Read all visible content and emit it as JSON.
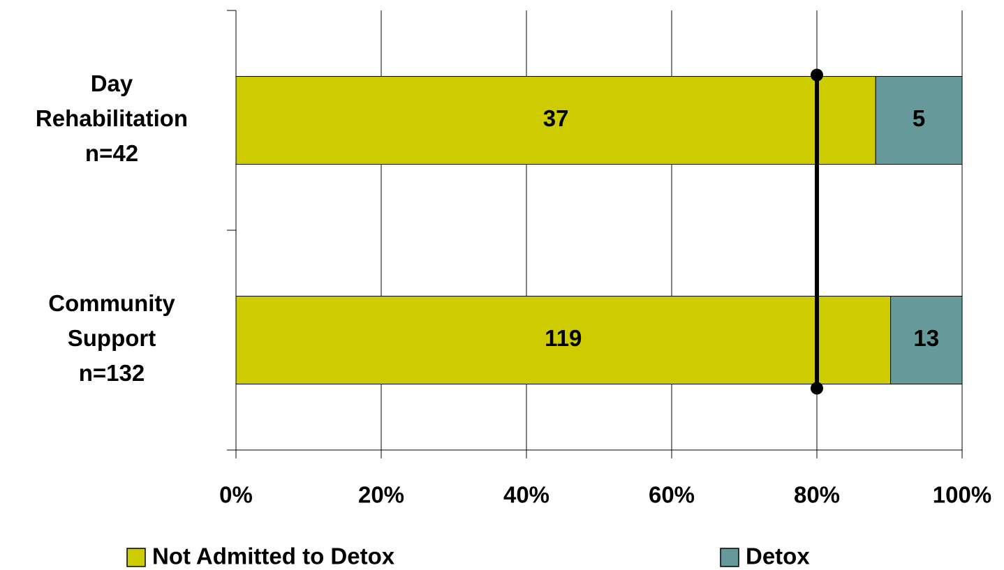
{
  "chart_data": {
    "type": "bar",
    "orientation": "horizontal",
    "stack": "percent",
    "categories": [
      [
        "Day",
        "Rehabilitation",
        "n=42"
      ],
      [
        "Community",
        "Support",
        "n=132"
      ]
    ],
    "series": [
      {
        "name": "Not Admitted to Detox",
        "color": "#cccc00",
        "values": [
          37,
          119
        ]
      },
      {
        "name": "Detox",
        "color": "#669999",
        "values": [
          5,
          13
        ]
      }
    ],
    "xlim": [
      0,
      100
    ],
    "xticks": [
      {
        "value": 0,
        "label": "0%"
      },
      {
        "value": 20,
        "label": "20%"
      },
      {
        "value": 40,
        "label": "40%"
      },
      {
        "value": 60,
        "label": "60%"
      },
      {
        "value": 80,
        "label": "80%"
      },
      {
        "value": 100,
        "label": "100%"
      }
    ],
    "grid": true,
    "reference_line": {
      "value": 80,
      "color": "#000000"
    },
    "legend": "bottom"
  }
}
